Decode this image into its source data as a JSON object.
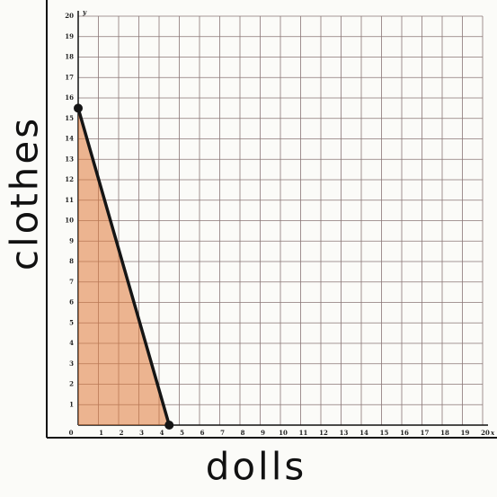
{
  "chart_data": {
    "type": "line",
    "xlabel": "dolls",
    "ylabel": "clothes",
    "xname": "x",
    "yname": "y",
    "x": [
      0,
      4.5
    ],
    "values": [
      15.5,
      0
    ],
    "color": "#151515",
    "fill_color": "#e07a3a",
    "shade_below": true,
    "xlim": [
      0,
      20
    ],
    "ylim": [
      0,
      20
    ],
    "xticks": [
      0,
      1,
      2,
      3,
      4,
      5,
      6,
      7,
      8,
      9,
      10,
      11,
      12,
      13,
      14,
      15,
      16,
      17,
      18,
      19,
      20
    ],
    "yticks": [
      1,
      2,
      3,
      4,
      5,
      6,
      7,
      8,
      9,
      10,
      11,
      12,
      13,
      14,
      15,
      16,
      17,
      18,
      19,
      20
    ],
    "grid": true
  }
}
